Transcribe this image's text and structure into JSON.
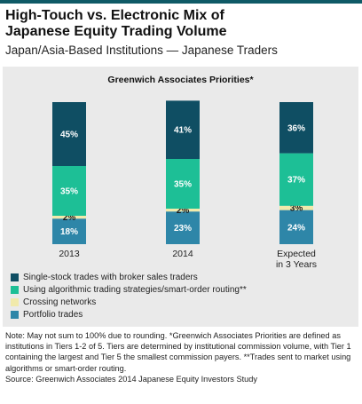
{
  "header": {
    "title_line1": "High-Touch vs. Electronic Mix of",
    "title_line2": "Japanese Equity Trading Volume",
    "subtitle": "Japan/Asia-Based Institutions — Japanese Traders"
  },
  "colors": {
    "single_stock": "#0f4e63",
    "algorithmic": "#1dbf96",
    "crossing": "#f1eaab",
    "portfolio": "#2e86a8",
    "background": "#eaeaea"
  },
  "chart_data": {
    "type": "bar",
    "stacked": true,
    "title": "Greenwich Associates Priorities*",
    "categories": [
      "2013",
      "2014",
      "Expected|in 3 Years"
    ],
    "series": [
      {
        "name": "Portfolio trades",
        "color": "#2e86a8",
        "values": [
          18,
          23,
          24
        ],
        "labels": [
          "18%",
          "23%",
          "24%"
        ]
      },
      {
        "name": "Crossing networks",
        "color": "#f1eaab",
        "values": [
          2,
          2,
          3
        ],
        "labels": [
          "2%",
          "2%",
          "3%"
        ]
      },
      {
        "name": "Using algorithmic trading strategies/smart-order routing**",
        "color": "#1dbf96",
        "values": [
          35,
          35,
          37
        ],
        "labels": [
          "35%",
          "35%",
          "37%"
        ]
      },
      {
        "name": "Single-stock trades with broker sales traders",
        "color": "#0f4e63",
        "values": [
          45,
          41,
          36
        ],
        "labels": [
          "45%",
          "41%",
          "36%"
        ]
      }
    ],
    "legend": [
      {
        "label": "Single-stock trades with broker sales traders",
        "color": "#0f4e63"
      },
      {
        "label": "Using algorithmic trading strategies/smart-order routing**",
        "color": "#1dbf96"
      },
      {
        "label": "Crossing networks",
        "color": "#f1eaab"
      },
      {
        "label": "Portfolio trades",
        "color": "#2e86a8"
      }
    ],
    "legend_position": "bottom-left",
    "ylim": [
      0,
      100
    ],
    "grid": false
  },
  "footer": {
    "note": "Note: May not sum to 100% due to rounding. *Greenwich Associates Priorities are defined as institutions in Tiers 1-2 of 5. Tiers are determined by institutional commission volume, with Tier 1 containing the largest and Tier 5 the smallest commission payers. **Trades sent to market using algorithms or smart-order routing.",
    "source": "Source: Greenwich Associates 2014 Japanese Equity Investors Study"
  }
}
